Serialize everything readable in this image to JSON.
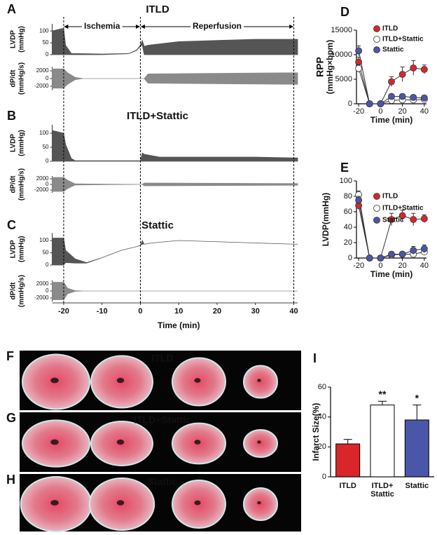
{
  "chart_data": [
    {
      "type": "trace",
      "panel": "A",
      "title": "ITLD",
      "title_color": "#e0262b",
      "ylabel": [
        "LVDP",
        "(mmHg)"
      ],
      "xlim": [
        -23,
        41
      ],
      "ylim": [
        0,
        130
      ],
      "yticks": [
        0,
        50,
        100
      ],
      "color": "#555555",
      "annotations": [
        {
          "text": "Ischemia",
          "x": [
            -20,
            0
          ]
        },
        {
          "text": "Reperfusion",
          "x": [
            0,
            40
          ]
        }
      ],
      "x": [
        -23,
        -20.5,
        -20,
        -19.5,
        -18,
        -10,
        -3,
        -1,
        0,
        0.5,
        1,
        2,
        10,
        20,
        30,
        40,
        41
      ],
      "values": [
        100,
        110,
        110,
        40,
        5,
        3,
        5,
        20,
        40,
        60,
        35,
        40,
        55,
        60,
        65,
        65,
        65
      ],
      "lower": [
        0,
        0,
        0,
        0,
        0,
        0,
        4,
        18,
        35,
        40,
        0,
        0,
        0,
        0,
        0,
        0,
        0
      ]
    },
    {
      "type": "band",
      "ylabel": [
        "dP/dt",
        "(mmHg/s)"
      ],
      "xlim": [
        -23,
        41
      ],
      "ylim": [
        -3000,
        3000
      ],
      "yticks": [
        -2000,
        0,
        2000
      ],
      "color": "#8a8a8a",
      "x": [
        -23,
        -20,
        -19,
        -17,
        -15,
        1,
        2,
        40,
        41
      ],
      "values": [
        2500,
        2500,
        1500,
        300,
        0,
        0,
        1200,
        1500,
        1500
      ]
    },
    {
      "type": "trace",
      "panel": "B",
      "title": "ITLD+Stattic",
      "title_color": "#222222",
      "ylabel": [
        "LVDP",
        "(mmHg)"
      ],
      "xlim": [
        -23,
        41
      ],
      "ylim": [
        0,
        130
      ],
      "yticks": [
        0,
        50,
        100
      ],
      "color": "#555555",
      "x": [
        -23,
        -20,
        -19.5,
        -18,
        -17,
        0,
        0.5,
        1,
        5,
        30,
        40,
        41
      ],
      "values": [
        110,
        100,
        60,
        10,
        2,
        2,
        30,
        25,
        15,
        15,
        12,
        12
      ],
      "lower": [
        0,
        0,
        0,
        0,
        0,
        0,
        0,
        0,
        0,
        0,
        0,
        0
      ]
    },
    {
      "type": "band",
      "ylabel": [
        "dP/dt",
        "(mmHg/s)"
      ],
      "xlim": [
        -23,
        41
      ],
      "ylim": [
        -3000,
        3000
      ],
      "yticks": [
        -2000,
        0,
        2000
      ],
      "color": "#8a8a8a",
      "x": [
        -23,
        -20,
        -19,
        -17,
        0,
        0.5,
        1,
        40,
        41
      ],
      "values": [
        2500,
        2500,
        1500,
        200,
        0,
        0,
        500,
        300,
        300
      ]
    },
    {
      "type": "trace",
      "panel": "C",
      "title": "Stattic",
      "title_color": "#4a57a8",
      "ylabel": [
        "LVDP",
        "(mmHg)"
      ],
      "xlim": [
        -23,
        41
      ],
      "ylim": [
        0,
        130
      ],
      "yticks": [
        0,
        50,
        100
      ],
      "color": "#555555",
      "x": [
        -23,
        -20,
        -19.5,
        -17,
        -14,
        -10,
        -5,
        -1,
        0,
        0.5,
        1,
        3,
        10,
        20,
        30,
        40,
        41
      ],
      "values": [
        110,
        110,
        60,
        25,
        10,
        30,
        60,
        75,
        80,
        100,
        85,
        90,
        100,
        95,
        90,
        85,
        85
      ],
      "lower": [
        0,
        0,
        10,
        8,
        8,
        30,
        60,
        75,
        80,
        85,
        85,
        90,
        100,
        95,
        90,
        85,
        85
      ]
    },
    {
      "type": "band",
      "ylabel": [
        "dP/dt",
        "(mmHg/s)"
      ],
      "xlim": [
        -23,
        41
      ],
      "ylim": [
        -3000,
        3000
      ],
      "yticks": [
        -2000,
        0,
        2000
      ],
      "color": "#8a8a8a",
      "x": [
        -23,
        -20,
        -19,
        -17,
        -15,
        41
      ],
      "values": [
        2500,
        2500,
        800,
        100,
        0,
        0
      ],
      "xticks": [
        -20,
        -10,
        0,
        10,
        20,
        30,
        40
      ],
      "xlabel": "Time (min)",
      "events": [
        -20,
        0,
        40
      ]
    },
    {
      "type": "line",
      "panel": "D",
      "ylabel": [
        "RPP",
        "(mmHg×bpm)"
      ],
      "xlabel": "Time (min)",
      "xlim": [
        -22,
        42
      ],
      "ylim": [
        0,
        15000
      ],
      "xticks": [
        -20,
        0,
        20,
        40
      ],
      "yticks": [
        0,
        5000,
        10000,
        15000
      ],
      "legend": "upper right",
      "x": [
        -20,
        -10,
        0,
        10,
        20,
        30,
        40
      ],
      "series": [
        {
          "name": "ITLD",
          "color": "#d9262a",
          "values": [
            8500,
            0,
            0,
            4500,
            6000,
            7300,
            7000
          ],
          "errors": [
            1000,
            0,
            0,
            1000,
            1500,
            1500,
            900
          ]
        },
        {
          "name": "ITLD+Stattic",
          "color": "#ffffff",
          "values": [
            7200,
            0,
            0,
            700,
            800,
            800,
            900
          ],
          "errors": [
            800,
            0,
            0,
            300,
            300,
            300,
            300
          ]
        },
        {
          "name": "Stattic",
          "color": "#4a57a8",
          "values": [
            10800,
            0,
            0,
            1500,
            1500,
            1300,
            1200
          ],
          "errors": [
            1000,
            0,
            0,
            400,
            400,
            400,
            400
          ]
        }
      ]
    },
    {
      "type": "line",
      "panel": "E",
      "ylabel": [
        "LVDP(mmHg)"
      ],
      "xlabel": "Time (min)",
      "xlim": [
        -22,
        42
      ],
      "ylim": [
        0,
        100
      ],
      "xticks": [
        -20,
        0,
        20,
        40
      ],
      "yticks": [
        0,
        20,
        40,
        60,
        80,
        100
      ],
      "legend": "upper right",
      "x": [
        -20,
        -10,
        0,
        10,
        20,
        30,
        40
      ],
      "series": [
        {
          "name": "ITLD",
          "color": "#d9262a",
          "values": [
            68,
            0,
            0,
            50,
            55,
            50,
            51
          ],
          "errors": [
            5,
            0,
            0,
            8,
            7,
            8,
            5
          ]
        },
        {
          "name": "ITLD+Stattic",
          "color": "#ffffff",
          "values": [
            82,
            0,
            0,
            4,
            5,
            5,
            8
          ],
          "errors": [
            5,
            0,
            0,
            2,
            2,
            3,
            3
          ]
        },
        {
          "name": "Stattic",
          "color": "#4a57a8",
          "values": [
            75,
            0,
            0,
            5,
            5,
            10,
            12
          ],
          "errors": [
            5,
            0,
            0,
            2,
            2,
            5,
            5
          ]
        }
      ]
    },
    {
      "type": "bar",
      "panel": "I",
      "ylabel": [
        "Infarct Size(%)"
      ],
      "categories": [
        "ITLD",
        "ITLD+\nStattic",
        "Stattic"
      ],
      "category_colors": [
        "#e0262b",
        "#000000",
        "#4a57a8"
      ],
      "values": [
        22,
        48,
        38
      ],
      "errors": [
        3,
        2.5,
        10
      ],
      "colors": [
        "#d9262a",
        "#ffffff",
        "#4a57a8"
      ],
      "significance": [
        null,
        "**",
        "*"
      ],
      "ylim": [
        0,
        60
      ],
      "yticks": [
        0,
        20,
        40,
        60
      ]
    }
  ],
  "photos": [
    {
      "panel": "F",
      "label": "ITLD"
    },
    {
      "panel": "G",
      "label": "ITLD+Stattic"
    },
    {
      "panel": "H",
      "label": "Stattic"
    }
  ]
}
